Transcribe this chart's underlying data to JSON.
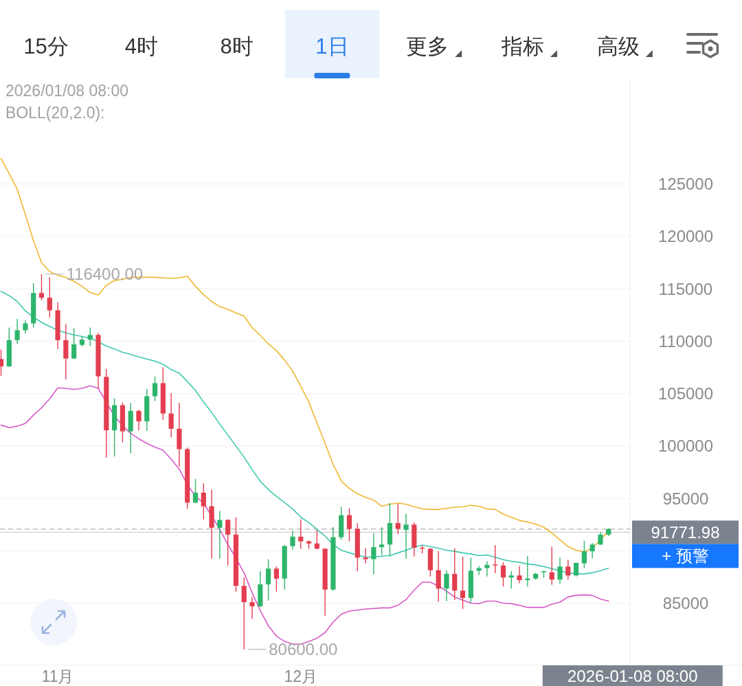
{
  "chart_data": {
    "type": "candlestick",
    "title": "2026/01/08 08:00",
    "subtitle": "BOLL(20,2.0):",
    "categories": [
      null,
      null,
      null,
      null,
      null,
      null,
      null,
      "11月",
      null,
      null,
      null,
      null,
      null,
      null,
      null,
      null,
      null,
      null,
      null,
      null,
      null,
      null,
      null,
      null,
      null,
      null,
      null,
      null,
      null,
      null,
      null,
      null,
      null,
      null,
      null,
      null,
      null,
      "12月",
      null,
      null,
      null,
      null,
      null,
      null,
      null,
      null,
      null,
      null,
      null,
      null,
      null,
      null,
      null,
      null,
      null,
      null,
      null,
      null,
      null,
      null,
      null,
      null,
      null,
      null,
      null,
      null,
      null,
      null,
      null,
      null,
      null,
      null,
      null,
      null,
      null,
      null
    ],
    "ohlc": [
      [
        108300,
        109200,
        106700,
        107600
      ],
      [
        107600,
        111300,
        107550,
        110100
      ],
      [
        110100,
        112150,
        109750,
        111050
      ],
      [
        111050,
        112000,
        110750,
        111700
      ],
      [
        111700,
        115550,
        111300,
        114600
      ],
      [
        114600,
        116400,
        113900,
        114150
      ],
      [
        114150,
        116100,
        112250,
        112950
      ],
      [
        112950,
        113700,
        109250,
        110100
      ],
      [
        110100,
        111650,
        106350,
        108350
      ],
      [
        108350,
        111250,
        108300,
        109700
      ],
      [
        109650,
        110500,
        109500,
        110150
      ],
      [
        110150,
        111300,
        109550,
        110600
      ],
      [
        110600,
        110800,
        105500,
        106650
      ],
      [
        106600,
        107350,
        98900,
        101500
      ],
      [
        101500,
        104550,
        99000,
        103900
      ],
      [
        103900,
        104150,
        100350,
        101400
      ],
      [
        101400,
        104100,
        99300,
        103350
      ],
      [
        103350,
        103450,
        101500,
        102350
      ],
      [
        102350,
        105450,
        101450,
        104750
      ],
      [
        104750,
        106650,
        104300,
        106000
      ],
      [
        106000,
        107500,
        102500,
        103100
      ],
      [
        103100,
        105050,
        100850,
        101650
      ],
      [
        101650,
        104100,
        98050,
        99700
      ],
      [
        99700,
        99850,
        94000,
        94600
      ],
      [
        94600,
        96850,
        94550,
        95550
      ],
      [
        95550,
        96450,
        93000,
        94250
      ],
      [
        94250,
        95850,
        89250,
        92200
      ],
      [
        92200,
        93800,
        89250,
        92950
      ],
      [
        92950,
        93000,
        88600,
        91550
      ],
      [
        91550,
        93200,
        86100,
        86650
      ],
      [
        86650,
        87450,
        80600,
        85100
      ],
      [
        85100,
        85600,
        83500,
        84700
      ],
      [
        84700,
        88050,
        84650,
        86800
      ],
      [
        86800,
        89200,
        85250,
        88300
      ],
      [
        88300,
        88500,
        86100,
        87350
      ],
      [
        87350,
        90550,
        86300,
        90450
      ],
      [
        90450,
        91900,
        90100,
        91350
      ],
      [
        91350,
        93000,
        90200,
        90900
      ],
      [
        90900,
        91000,
        90200,
        90700
      ],
      [
        90700,
        92000,
        90150,
        90200
      ],
      [
        90200,
        90250,
        83800,
        86300
      ],
      [
        86300,
        92250,
        86200,
        91300
      ],
      [
        91300,
        94200,
        91050,
        93400
      ],
      [
        93400,
        94050,
        90900,
        92100
      ],
      [
        92100,
        92650,
        88050,
        89350
      ],
      [
        89350,
        90250,
        88800,
        89200
      ],
      [
        89200,
        91700,
        87750,
        90350
      ],
      [
        90350,
        92250,
        89600,
        90600
      ],
      [
        90600,
        94550,
        89450,
        92650
      ],
      [
        92650,
        94500,
        91600,
        92100
      ],
      [
        92000,
        93550,
        89250,
        92500
      ],
      [
        92500,
        92700,
        89450,
        90300
      ],
      [
        90300,
        90550,
        89750,
        90200
      ],
      [
        90200,
        90250,
        87550,
        88150
      ],
      [
        88150,
        89950,
        85150,
        86400
      ],
      [
        86400,
        88150,
        85200,
        87800
      ],
      [
        87800,
        90250,
        85300,
        86200
      ],
      [
        86200,
        89450,
        84450,
        85500
      ],
      [
        85500,
        89350,
        85050,
        88100
      ],
      [
        88100,
        88550,
        87700,
        88350
      ],
      [
        88350,
        89000,
        87550,
        88650
      ],
      [
        88700,
        90550,
        87850,
        88600
      ],
      [
        88600,
        88900,
        86600,
        87450
      ],
      [
        87450,
        88050,
        86400,
        87650
      ],
      [
        87650,
        88550,
        86900,
        87200
      ],
      [
        87200,
        89500,
        86600,
        87350
      ],
      [
        87350,
        87900,
        87250,
        87800
      ],
      [
        87950,
        88100,
        87450,
        88050
      ],
      [
        87950,
        90400,
        86750,
        87250
      ],
      [
        87250,
        89350,
        86850,
        88500
      ],
      [
        88500,
        89150,
        87250,
        87650
      ],
      [
        87650,
        88850,
        87550,
        88850
      ],
      [
        88800,
        90950,
        88350,
        89950
      ],
      [
        89950,
        90750,
        89300,
        90600
      ],
      [
        90600,
        91800,
        90550,
        91550
      ],
      [
        91550,
        92150,
        91400,
        92080
      ]
    ],
    "colors": [
      "#e33e4f",
      "#2db56b",
      "#2db56b",
      "#2db56b",
      "#2db56b",
      "#e33e4f",
      "#e33e4f",
      "#e33e4f",
      "#e33e4f",
      "#2db56b",
      "#2db56b",
      "#2db56b",
      "#e33e4f",
      "#e33e4f",
      "#2db56b",
      "#e33e4f",
      "#2db56b",
      "#e33e4f",
      "#2db56b",
      "#2db56b",
      "#e33e4f",
      "#e33e4f",
      "#e33e4f",
      "#e33e4f",
      "#2db56b",
      "#e33e4f",
      "#e33e4f",
      "#2db56b",
      "#e33e4f",
      "#e33e4f",
      "#e33e4f",
      "#e33e4f",
      "#2db56b",
      "#2db56b",
      "#e33e4f",
      "#2db56b",
      "#2db56b",
      "#e33e4f",
      "#e33e4f",
      "#e33e4f",
      "#e33e4f",
      "#2db56b",
      "#2db56b",
      "#e33e4f",
      "#e33e4f",
      "#e33e4f",
      "#2db56b",
      "#2db56b",
      "#2db56b",
      "#e33e4f",
      "#2db56b",
      "#e33e4f",
      "#e33e4f",
      "#e33e4f",
      "#e33e4f",
      "#2db56b",
      "#e33e4f",
      "#e33e4f",
      "#2db56b",
      "#2db56b",
      "#2db56b",
      "#e33e4f",
      "#e33e4f",
      "#2db56b",
      "#e33e4f",
      "#2db56b",
      "#2db56b",
      "#2db56b",
      "#e33e4f",
      "#2db56b",
      "#e33e4f",
      "#2db56b",
      "#2db56b",
      "#2db56b",
      "#2db56b",
      "#2db56b"
    ],
    "series": [
      {
        "type": "line",
        "color": "#f0b72f",
        "values": [
          127450,
          126000,
          124500,
          122100,
          119600,
          117500,
          116650,
          116300,
          116100,
          115700,
          115250,
          114650,
          114400,
          115350,
          115800,
          115900,
          116100,
          116100,
          116100,
          116100,
          116050,
          116000,
          116050,
          116200,
          115250,
          114450,
          113800,
          113300,
          113050,
          112700,
          112400,
          111300,
          110550,
          109750,
          109100,
          108200,
          107150,
          105700,
          104200,
          102200,
          100250,
          98250,
          96650,
          95950,
          95450,
          95100,
          94850,
          94250,
          94450,
          94550,
          94450,
          94200,
          94000,
          93950,
          93950,
          94050,
          94150,
          94200,
          94350,
          94250,
          94000,
          93950,
          93500,
          93200,
          92900,
          92750,
          92550,
          92250,
          91700,
          91050,
          90400,
          90050,
          89900,
          90250,
          91050,
          91900
        ]
      },
      {
        "type": "line",
        "color": "#3fc9b0",
        "values": [
          114750,
          114350,
          113800,
          112900,
          112300,
          111800,
          111400,
          111050,
          110800,
          110600,
          110450,
          110300,
          109950,
          109550,
          109250,
          108950,
          108750,
          108500,
          108300,
          108100,
          107800,
          107300,
          106950,
          106150,
          105300,
          104200,
          103200,
          102100,
          101050,
          100000,
          98950,
          97750,
          96650,
          95850,
          95200,
          94600,
          94000,
          93200,
          92700,
          92050,
          91400,
          90600,
          90050,
          89800,
          89600,
          89400,
          89400,
          89500,
          89550,
          89800,
          90050,
          90350,
          90550,
          90400,
          90250,
          90050,
          89950,
          89800,
          89700,
          89550,
          89600,
          89400,
          89150,
          89000,
          88900,
          88750,
          88650,
          88500,
          88300,
          88100,
          87900,
          87800,
          87800,
          87900,
          88100,
          88350
        ]
      },
      {
        "type": "line",
        "color": "#d65bc8",
        "values": [
          102000,
          101750,
          101900,
          102150,
          102950,
          103650,
          104500,
          105550,
          105500,
          105400,
          105500,
          105750,
          105500,
          null,
          102850,
          101950,
          101200,
          100700,
          100250,
          99900,
          99600,
          98750,
          97800,
          96300,
          95200,
          94550,
          93350,
          92050,
          90600,
          89300,
          87900,
          86000,
          84300,
          82850,
          81850,
          81350,
          81100,
          81100,
          81350,
          81650,
          82200,
          83200,
          83950,
          84250,
          84350,
          84450,
          84500,
          84550,
          84550,
          84800,
          85350,
          86250,
          87000,
          87000,
          86650,
          86150,
          85600,
          85300,
          85000,
          84950,
          85200,
          85200,
          85000,
          84950,
          84800,
          84600,
          84600,
          84600,
          84900,
          85100,
          85600,
          85750,
          85800,
          85750,
          85400,
          85200
        ]
      }
    ],
    "ylim": [
      79100,
      135150
    ],
    "yticks": [
      85000,
      {
        "value": 90000,
        "label": null
      },
      95000,
      100000,
      105000,
      110000,
      115000,
      120000,
      125000
    ],
    "grid": "y",
    "ref_lines": [
      {
        "axis": "y",
        "value": 92080,
        "line_style": "dashed",
        "color": "#b4b4b4"
      },
      {
        "axis": "y",
        "value": 91771.98,
        "label": "91771.98",
        "line_style": "solid",
        "color": "#cfcfcf"
      }
    ],
    "annotations": [
      "116400.00",
      "80600.00",
      "2026-01-08 08:00",
      "15分",
      "4时",
      "8时",
      "1日",
      "更多",
      "指标",
      "高级",
      "+ 预警"
    ]
  }
}
